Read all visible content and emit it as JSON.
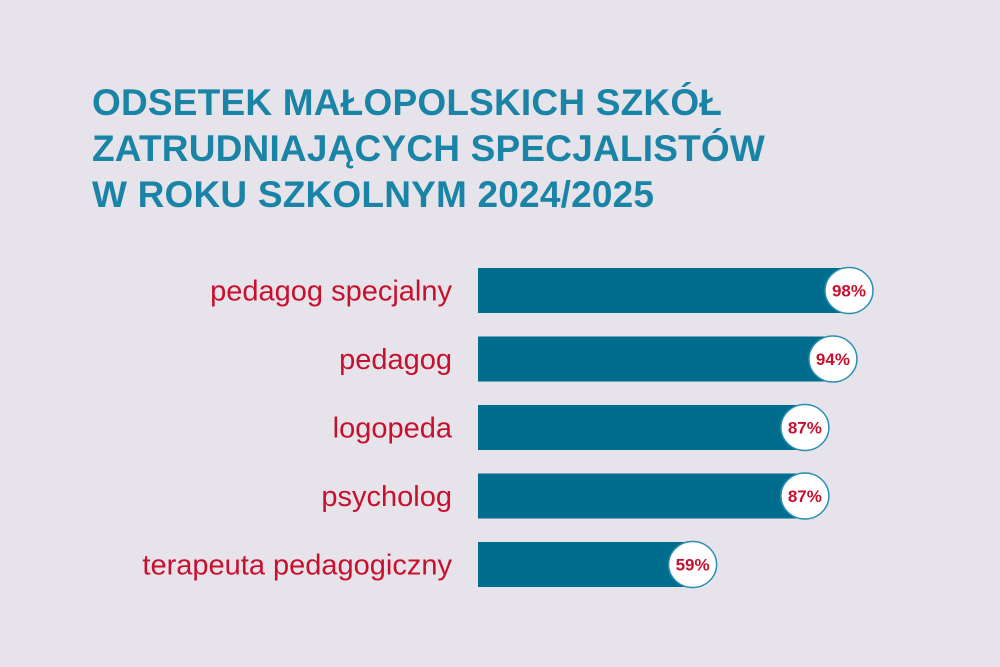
{
  "header": {
    "title_lines": [
      "ODSETEK MAŁOPOLSKICH SZKÓŁ",
      "ZATRUDNIAJĄCYCH SPECJALISTÓW",
      "W ROKU SZKOLNYM 2024/2025"
    ]
  },
  "colors": {
    "background": "#e6e3ea",
    "title": "#1a84a6",
    "bar": "#006d8f",
    "label": "#c8102e",
    "badge_fill": "#ffffff",
    "badge_stroke": "#2a8fb0"
  },
  "chart_data": {
    "type": "bar",
    "orientation": "horizontal",
    "title": "ODSETEK MAŁOPOLSKICH SZKÓŁ ZATRUDNIAJĄCYCH SPECJALISTÓW W ROKU SZKOLNYM 2024/2025",
    "categories": [
      "pedagog specjalny",
      "pedagog",
      "logopeda",
      "psycholog",
      "terapeuta pedagogiczny"
    ],
    "values": [
      98,
      94,
      87,
      87,
      59
    ],
    "value_labels": [
      "98%",
      "94%",
      "87%",
      "87%",
      "59%"
    ],
    "unit": "%",
    "xlim": [
      0,
      100
    ],
    "xlabel": "",
    "ylabel": "",
    "grid": false,
    "legend": "none"
  }
}
